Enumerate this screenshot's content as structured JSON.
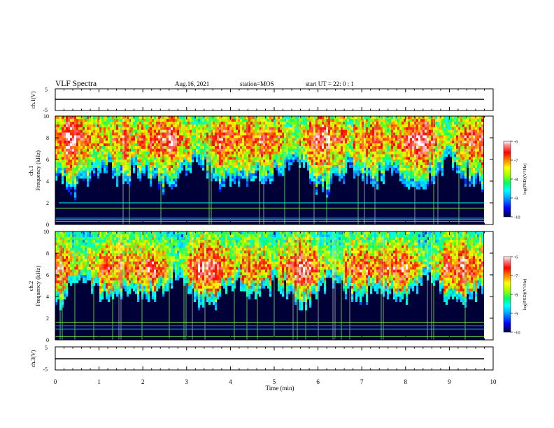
{
  "header": {
    "title": "VLF Spectra",
    "date": "Aug.16, 2021",
    "station": "station=MOS",
    "start": "start  UT =   22: 0  : 1"
  },
  "colors": {
    "colormap": [
      "#000040",
      "#0000ff",
      "#00a0ff",
      "#00ffff",
      "#00ff80",
      "#80ff00",
      "#ffff00",
      "#ff8000",
      "#ff0000",
      "#ff8080",
      "#ffffff"
    ],
    "line_blue": "#4060ff",
    "line_cyan": "#00ffff",
    "line_green": "#80ff40"
  },
  "chart_data": [
    {
      "type": "line",
      "name": "ch1-waveform",
      "ylabel": "ch.1(V)",
      "ylim": [
        -5,
        5
      ],
      "yticks": [
        "5",
        "-5"
      ],
      "x": [
        0,
        10
      ],
      "values": [
        0,
        0
      ]
    },
    {
      "type": "heatmap",
      "name": "ch1-spectrogram",
      "ylabel": "ch.1\nFrequency (kHz)",
      "ylim": [
        0,
        10
      ],
      "yticks": [
        "0",
        "2",
        "4",
        "6",
        "8",
        "10"
      ],
      "xlim": [
        0,
        9.8
      ],
      "colorbar": {
        "label": "log(PSD)(V²/Hz)",
        "ticks": [
          "-6",
          "-7",
          "-8",
          "-9",
          "-10"
        ],
        "range": [
          -10,
          -6
        ]
      },
      "peak_band_khz": [
        6,
        9.5
      ],
      "horizontal_lines_khz": [
        0.3,
        0.5,
        0.6,
        1.5,
        2.0
      ]
    },
    {
      "type": "heatmap",
      "name": "ch2-spectrogram",
      "ylabel": "ch.2\nFrequency (kHz)",
      "ylim": [
        0,
        10
      ],
      "yticks": [
        "0",
        "2",
        "4",
        "6",
        "8",
        "10"
      ],
      "xlim": [
        0,
        9.8
      ],
      "colorbar": {
        "label": "log(PSD)(V²/Hz)",
        "ticks": [
          "-6",
          "-7",
          "-8",
          "-9",
          "-10"
        ],
        "range": [
          -10,
          -6
        ]
      },
      "peak_band_khz": [
        5,
        8
      ],
      "horizontal_lines_khz": [
        0.3,
        1.0,
        1.3,
        1.6
      ]
    },
    {
      "type": "line",
      "name": "ch3-waveform",
      "ylabel": "ch.3(V)",
      "ylim": [
        -5,
        5
      ],
      "yticks": [
        "5",
        "-5"
      ],
      "x": [
        0,
        10
      ],
      "values": [
        0,
        0
      ]
    }
  ],
  "xaxis": {
    "label": "Time  (min)",
    "range": [
      0,
      10
    ],
    "ticks": [
      "0",
      "1",
      "2",
      "3",
      "4",
      "5",
      "6",
      "7",
      "8",
      "9",
      "10"
    ]
  }
}
